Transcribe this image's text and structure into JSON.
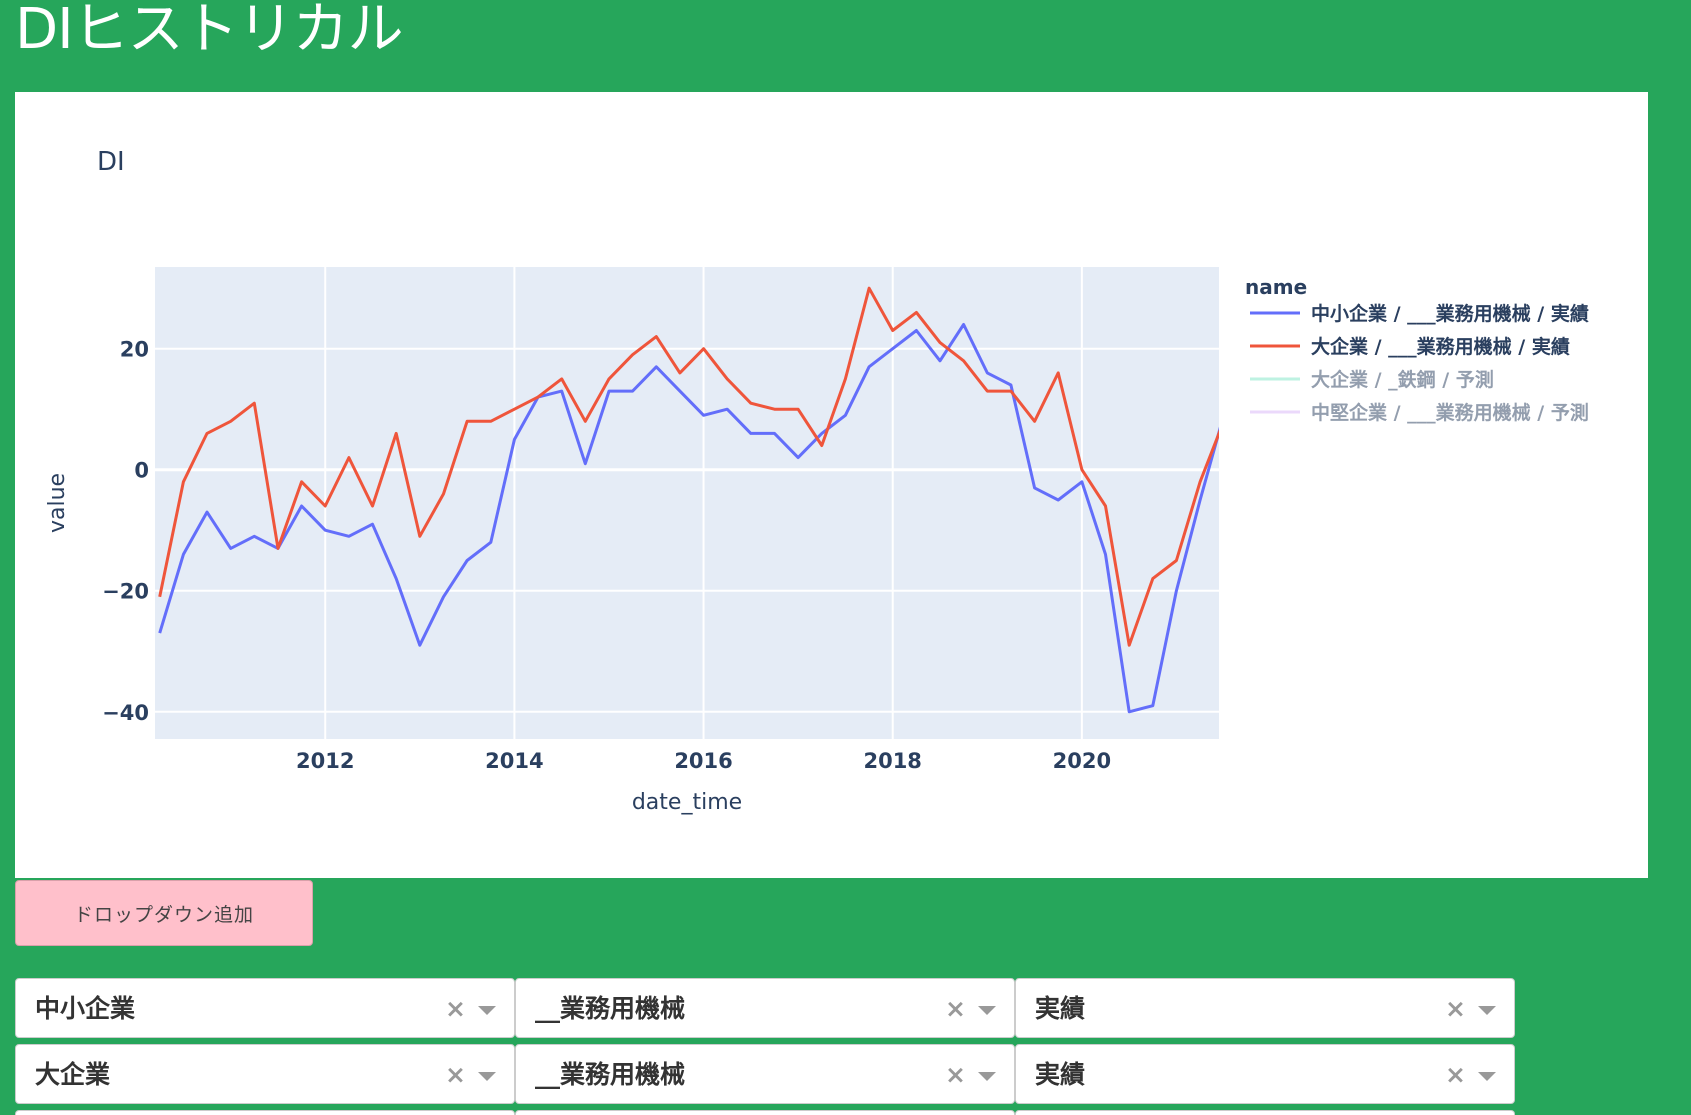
{
  "page": {
    "title": "DIヒストリカル"
  },
  "chart_data": {
    "type": "line",
    "title": "DI",
    "xlabel": "date_time",
    "ylabel": "value",
    "xlim": [
      2010.2,
      2021.45
    ],
    "ylim": [
      -44.5,
      33.5
    ],
    "x_ticks": [
      2012,
      2014,
      2016,
      2018,
      2020
    ],
    "y_ticks": [
      -40,
      -20,
      0,
      20
    ],
    "legend_title": "name",
    "legend_position": "right",
    "plot_background": "#e5ecf6",
    "grid": true,
    "x_start_label": "2010 Q2",
    "x_step": 0.25,
    "series": [
      {
        "name": "中小企業 / ___業務用機械 / 実績",
        "color": "#636efa",
        "visible": true,
        "values": [
          -27,
          -14,
          -7,
          -13,
          -11,
          -13,
          -6,
          -10,
          -11,
          -9,
          -18,
          -29,
          -21,
          -15,
          -12,
          5,
          12,
          13,
          1,
          13,
          13,
          17,
          13,
          9,
          10,
          6,
          6,
          2,
          6,
          9,
          17,
          20,
          23,
          18,
          24,
          16,
          14,
          -3,
          -5,
          -2,
          -14,
          -40,
          -39,
          -20,
          -5,
          9
        ]
      },
      {
        "name": "大企業 / ___業務用機械 / 実績",
        "color": "#ef553b",
        "visible": true,
        "values": [
          -21,
          -2,
          6,
          8,
          11,
          -13,
          -2,
          -6,
          2,
          -6,
          6,
          -11,
          -4,
          8,
          8,
          10,
          12,
          15,
          8,
          15,
          19,
          22,
          16,
          20,
          15,
          11,
          10,
          10,
          4,
          15,
          30,
          23,
          26,
          21,
          18,
          13,
          13,
          8,
          16,
          0,
          -6,
          -29,
          -18,
          -15,
          -2,
          8
        ]
      },
      {
        "name": "大企業 / _鉄鋼 / 予測",
        "color": "#7fe6c6",
        "visible": false,
        "values": []
      },
      {
        "name": "中堅企業 / ___業務用機械 / 予測",
        "color": "#d8b4f8",
        "visible": false,
        "values": []
      }
    ]
  },
  "add_button": {
    "label": "ドロップダウン追加"
  },
  "dropdown_rows": [
    {
      "size": "中小企業",
      "industry": "__業務用機械",
      "kind": "実績"
    },
    {
      "size": "大企業",
      "industry": "__業務用機械",
      "kind": "実績"
    }
  ],
  "dropdown_clear_glyph": "×"
}
